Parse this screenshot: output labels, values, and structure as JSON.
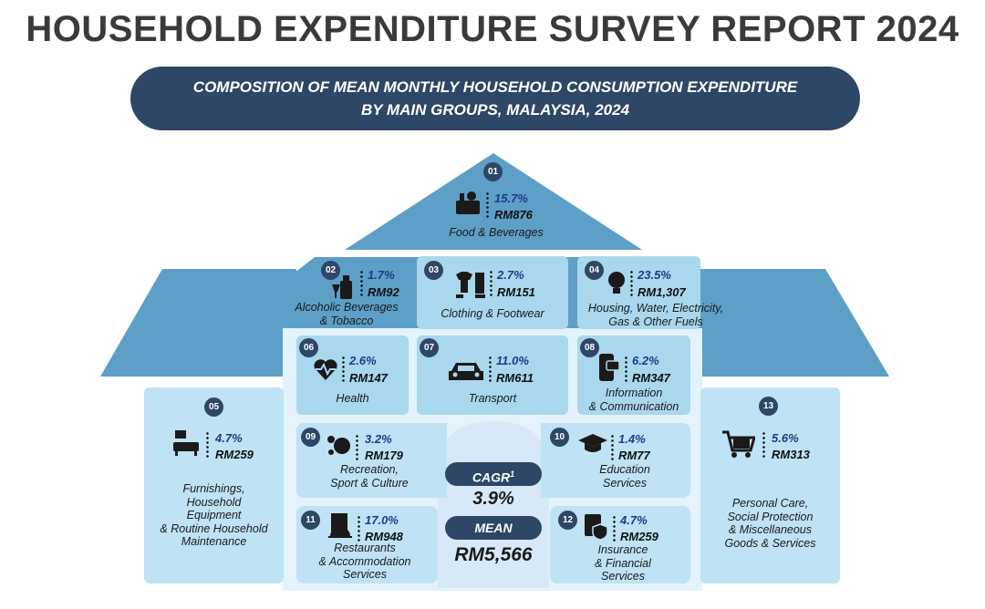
{
  "title": "HOUSEHOLD EXPENDITURE SURVEY REPORT 2024",
  "banner": {
    "line1": "COMPOSITION OF MEAN MONTHLY HOUSEHOLD CONSUMPTION EXPENDITURE",
    "line2": "BY MAIN GROUPS, MALAYSIA, 2024"
  },
  "chart_data": {
    "type": "table",
    "title": "COMPOSITION OF MEAN MONTHLY HOUSEHOLD CONSUMPTION EXPENDITURE BY MAIN GROUPS, MALAYSIA, 2024",
    "categories": [
      {
        "no": "01",
        "name": "Food &  Beverages",
        "percent": "15.7%",
        "amount": "RM876"
      },
      {
        "no": "02",
        "name": "Alcoholic Beverages\n& Tobacco",
        "percent": "1.7%",
        "amount": "RM92"
      },
      {
        "no": "03",
        "name": "Clothing & Footwear",
        "percent": "2.7%",
        "amount": "RM151"
      },
      {
        "no": "04",
        "name": "Housing, Water, Electricity,\nGas & Other Fuels",
        "percent": "23.5%",
        "amount": "RM1,307"
      },
      {
        "no": "05",
        "name": "Furnishings,\nHousehold\nEquipment\n& Routine Household\nMaintenance",
        "percent": "4.7%",
        "amount": "RM259"
      },
      {
        "no": "06",
        "name": "Health",
        "percent": "2.6%",
        "amount": "RM147"
      },
      {
        "no": "07",
        "name": "Transport",
        "percent": "11.0%",
        "amount": "RM611"
      },
      {
        "no": "08",
        "name": "Information\n& Communication",
        "percent": "6.2%",
        "amount": "RM347"
      },
      {
        "no": "09",
        "name": "Recreation,\nSport & Culture",
        "percent": "3.2%",
        "amount": "RM179"
      },
      {
        "no": "10",
        "name": "Education\nServices",
        "percent": "1.4%",
        "amount": "RM77"
      },
      {
        "no": "11",
        "name": "Restaurants\n& Accommodation\nServices",
        "percent": "17.0%",
        "amount": "RM948"
      },
      {
        "no": "12",
        "name": "Insurance\n& Financial\nServices",
        "percent": "4.7%",
        "amount": "RM259"
      },
      {
        "no": "13",
        "name": "Personal Care,\nSocial Protection\n& Miscellaneous\nGoods & Services",
        "percent": "5.6%",
        "amount": "RM313"
      }
    ],
    "percent_values": [
      15.7,
      1.7,
      2.7,
      23.5,
      4.7,
      2.6,
      11.0,
      6.2,
      3.2,
      1.4,
      17.0,
      4.7,
      5.6
    ],
    "amount_values_rm": [
      876,
      92,
      151,
      1307,
      259,
      147,
      611,
      347,
      179,
      77,
      948,
      259,
      313
    ],
    "summary": {
      "cagr_label": "CAGR",
      "cagr_sup": "1",
      "cagr_value": "3.9%",
      "mean_label": "MEAN",
      "mean_value": "RM5,566"
    }
  },
  "colors": {
    "roof": "#5d9fc6",
    "roof_dark": "#4f8fb8",
    "card_light": "#bfe2f4",
    "card_mid": "#a9d7ee",
    "navy": "#2e4766",
    "center": "#d7e9f8"
  }
}
